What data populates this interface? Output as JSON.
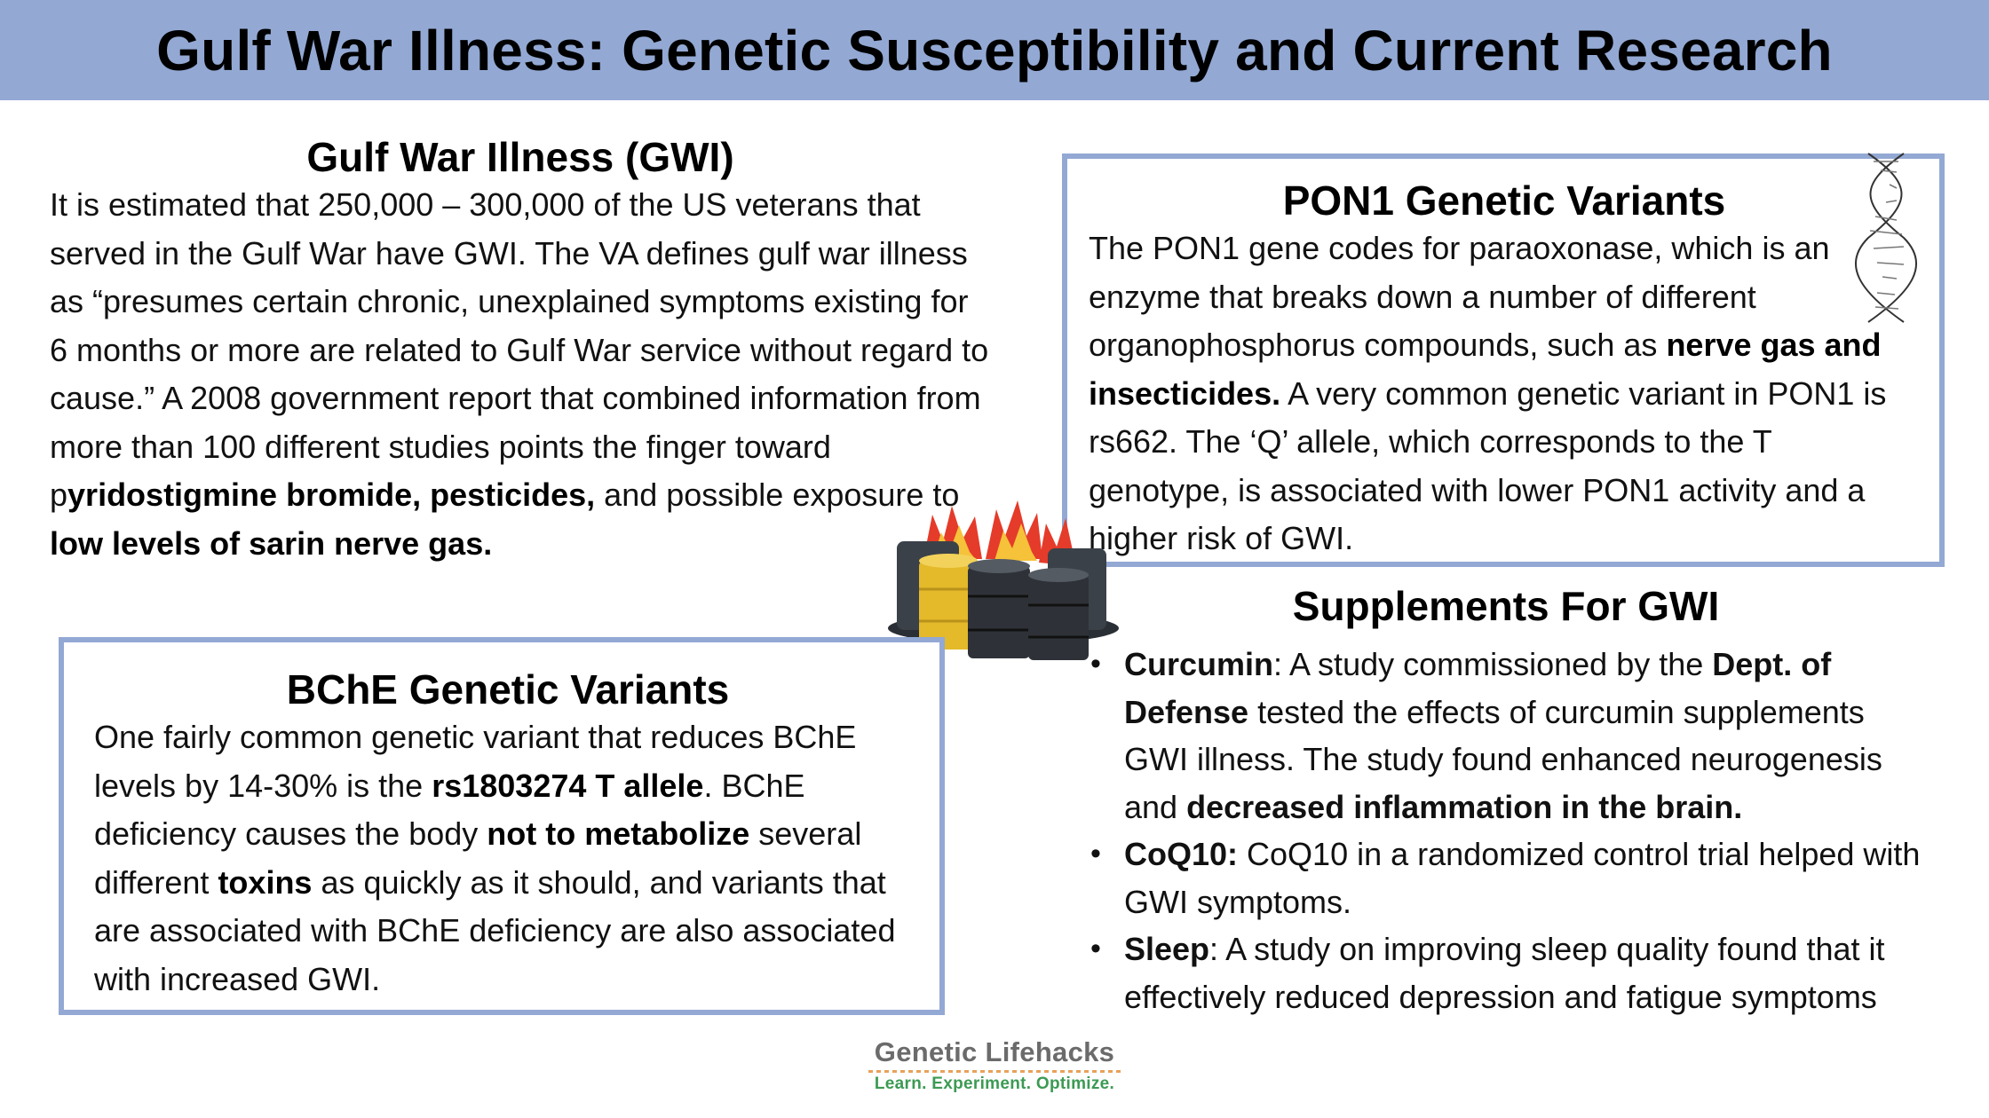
{
  "header": {
    "title": "Gulf War Illness: Genetic Susceptibility and Current Research"
  },
  "gwi": {
    "title": "Gulf War Illness (GWI)",
    "p1": "It is estimated that 250,000 – 300,000 of the US veterans that served in the Gulf War have GWI. The VA defines gulf war illness as “presumes certain chronic, unexplained symptoms existing for 6 months or more are related to Gulf War service without regard to cause.” A 2008 government report that combined information from more than 100 different studies points the finger toward p",
    "b1": "yridostigmine bromide, pesticides,",
    "p2": " and possible exposure to ",
    "b2": "low levels of sarin nerve gas."
  },
  "pon1": {
    "title": "PON1 Genetic Variants",
    "p1": "The PON1 gene codes for paraoxonase, which is an enzyme that breaks down a number of different organophosphorus compounds, such as ",
    "b1": "nerve gas and insecticides.",
    "p2": " A very common genetic variant in PON1 is rs662. The ‘Q’ allele, which corresponds to the T genotype, is associated with lower PON1 activity and a higher risk of GWI."
  },
  "bche": {
    "title": "BChE Genetic Variants",
    "p1": "One fairly common genetic variant that reduces BChE levels by 14-30% is the ",
    "b1": "rs1803274 T allele",
    "p2": ".  BChE deficiency causes the body ",
    "b2": "not to metabolize",
    "p3": " several different ",
    "b3": "toxins",
    "p4": " as quickly as it should, and variants that are associated with BChE deficiency are also associated with increased GWI."
  },
  "supplements": {
    "title": "Supplements For GWI",
    "items": [
      {
        "b1": "Curcumin",
        "t1": ": A study commissioned by the ",
        "b2": "Dept. of Defense",
        "t2": " tested the effects of curcumin supplements GWI illness. The study found enhanced neurogenesis and ",
        "b3": "decreased inflammation in the brain."
      },
      {
        "b1": "CoQ10:",
        "t1": " CoQ10 in a randomized control trial helped with GWI symptoms."
      },
      {
        "b1": "Sleep",
        "t1": ": A study on improving sleep quality found that it effectively reduced depression and fatigue symptoms"
      }
    ],
    "bullet": "•"
  },
  "logo": {
    "brand": "Genetic Lifehacks",
    "tagline": "Learn. Experiment. Optimize."
  },
  "icons": {
    "dna": "dna-helix-icon",
    "barrels": "burning-barrels-icon"
  },
  "colors": {
    "header_bg": "#93a9d4",
    "box_border": "#93a9d4",
    "logo_brand": "#6b6b6b",
    "logo_tag": "#3c9a53"
  }
}
